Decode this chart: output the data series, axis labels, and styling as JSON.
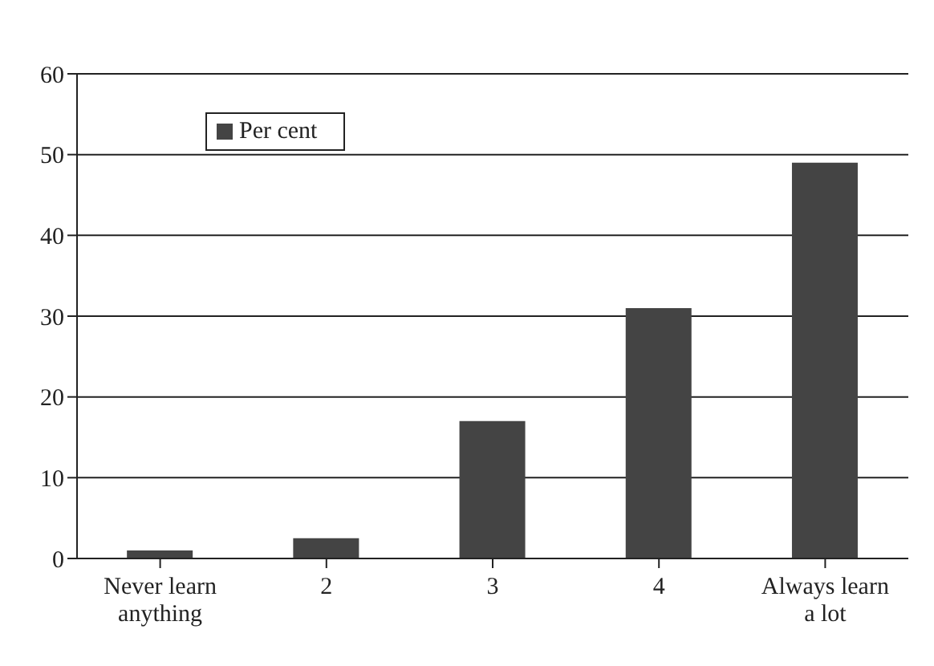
{
  "chart_data": {
    "type": "bar",
    "categories": [
      "Never learn anything",
      "2",
      "3",
      "4",
      "Always learn a lot"
    ],
    "series": [
      {
        "name": "Per cent",
        "color": "#444444",
        "values": [
          1,
          2.5,
          17,
          31,
          49
        ]
      }
    ],
    "ylim": [
      0,
      60
    ],
    "yticks": [
      0,
      10,
      20,
      30,
      40,
      50,
      60
    ],
    "grid": "y",
    "legend": "top left"
  }
}
